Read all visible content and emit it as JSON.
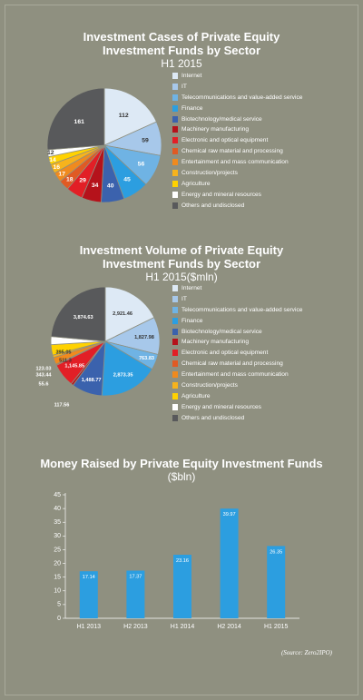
{
  "colors": {
    "Internet": "#dde9f5",
    "IT": "#a7c8ea",
    "Telecommunications and value-added service": "#6fb3e4",
    "Finance": "#2c9ee0",
    "Biotechnology/medical service": "#3b62ad",
    "Machinery manufacturing": "#b5121b",
    "Electronic and optical equipment": "#e21f26",
    "Chemical raw material and processing": "#e05a24",
    "Entertainment and mass communication": "#f08a1e",
    "Construction/projects": "#f7b31c",
    "Agriculture": "#ffd200",
    "Energy and mineral resources": "#ffffff",
    "Others and undisclosed": "#58595b",
    "bar": "#2c9ee0",
    "background": "#8f9080"
  },
  "legend_icon": "square-swatch-icon",
  "chart_data": [
    {
      "type": "pie",
      "title": "Investment Cases of Private Equity Investment Funds by Sector",
      "subtitle": "H1 2015",
      "categories": [
        "Internet",
        "IT",
        "Telecommunications and value-added service",
        "Finance",
        "Biotechnology/medical service",
        "Machinery manufacturing",
        "Electronic and optical equipment",
        "Chemical raw material and processing",
        "Entertainment and mass communication",
        "Construction/projects",
        "Agriculture",
        "Energy and mineral resources",
        "Others and undisclosed"
      ],
      "values": [
        112,
        59,
        56,
        45,
        40,
        34,
        29,
        18,
        17,
        16,
        14,
        12,
        161
      ],
      "labels": [
        "112",
        "59",
        "56",
        "45",
        "40",
        "34",
        "29",
        "18",
        "17",
        "16",
        "14",
        "12",
        "161"
      ],
      "legend_position": "right"
    },
    {
      "type": "pie",
      "title": "Investment Volume of Private Equity Investment Funds by Sector",
      "subtitle": "H1 2015($mln)",
      "categories": [
        "Internet",
        "IT",
        "Telecommunications and value-added service",
        "Finance",
        "Biotechnology/medical service",
        "Machinery manufacturing",
        "Electronic and optical equipment",
        "Chemical raw material and processing",
        "Entertainment and mass communication",
        "Construction/projects",
        "Agriculture",
        "Energy and mineral resources",
        "Others and undisclosed"
      ],
      "values": [
        2921.46,
        1827.98,
        763.83,
        2873.35,
        1488.77,
        117.56,
        1145.85,
        55.6,
        343.44,
        123.03,
        511.3,
        395.05,
        3874.63
      ],
      "labels": [
        "2,921.46",
        "1,827.98",
        "763.83",
        "2,873.35",
        "1,488.77",
        "117.56",
        "1,145.85",
        "55.6",
        "343.44",
        "123.03",
        "511.3",
        "395.05",
        "3,874.63"
      ],
      "legend_position": "right"
    },
    {
      "type": "bar",
      "title": "Money Raised by Private Equity Investment Funds",
      "subtitle": "($bln)",
      "categories": [
        "H1 2013",
        "H2 2013",
        "H1 2014",
        "H2 2014",
        "H1 2015"
      ],
      "values": [
        17.14,
        17.37,
        23.16,
        39.97,
        26.35
      ],
      "labels": [
        "17.14",
        "17.37",
        "23.16",
        "39.97",
        "26.35"
      ],
      "ylim": [
        0,
        45
      ],
      "yticks": [
        "0",
        "5",
        "10",
        "15",
        "20",
        "25",
        "30",
        "35",
        "40",
        "45"
      ],
      "grid": false
    }
  ],
  "source": "(Source: Zero2IPO)"
}
